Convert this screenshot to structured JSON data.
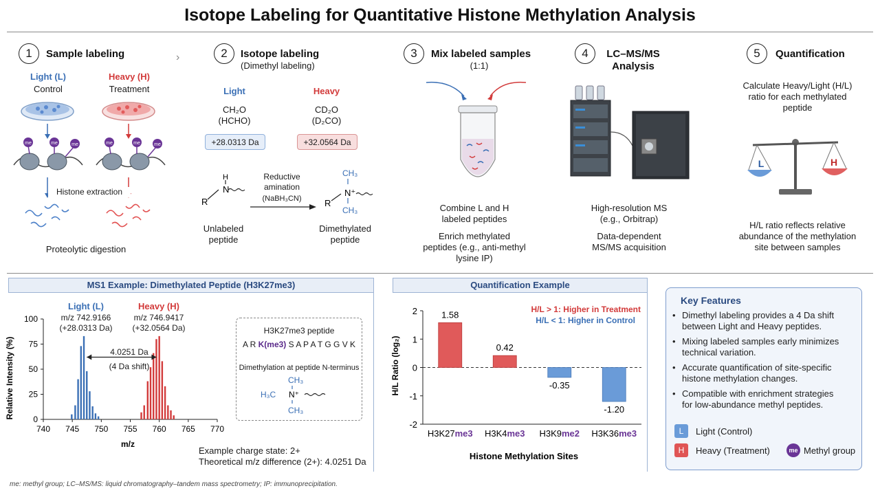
{
  "title": "Isotope Labeling for Quantitative Histone Methylation Analysis",
  "steps": [
    {
      "num": "1",
      "title": "Sample labeling"
    },
    {
      "num": "2",
      "title": "Isotope labeling",
      "subtitle": "(Dimethyl labeling)"
    },
    {
      "num": "3",
      "title": "Mix labeled samples",
      "subtitle": "(1:1)"
    },
    {
      "num": "4",
      "title": "LC–MS/MS",
      "subtitle": "Analysis"
    },
    {
      "num": "5",
      "title": "Quantification"
    }
  ],
  "step1": {
    "light_label": "Light (L)",
    "light_sub": "Control",
    "heavy_label": "Heavy (H)",
    "heavy_sub": "Treatment",
    "me": "me",
    "histone_extraction": "Histone extraction",
    "digestion": "Proteolytic digestion"
  },
  "step2": {
    "light": "Light",
    "light_formula": "CH₂O",
    "light_formula2": "(HCHO)",
    "light_mass": "+28.0313 Da",
    "heavy": "Heavy",
    "heavy_formula": "CD₂O",
    "heavy_formula2": "(D₂CO)",
    "heavy_mass": "+32.0564 Da",
    "reaction": "Reductive",
    "reaction2": "amination",
    "reagent": "(NaBH₃CN)",
    "unlabeled": "Unlabeled",
    "unlabeled2": "peptide",
    "dimethylated": "Dimethylated",
    "dimethylated2": "peptide",
    "atom_h": "H",
    "atom_n": "N",
    "atom_r": "R",
    "atom_n_plus": "N⁺",
    "ch3": "CH₃"
  },
  "step3": {
    "line1": "Combine L and H",
    "line2": "labeled peptides",
    "line3": "Enrich methylated",
    "line4": "peptides (e.g., anti-methyl",
    "line5": "lysine IP)"
  },
  "step4": {
    "line1": "High-resolution MS",
    "line2": "(e.g., Orbitrap)",
    "line3": "Data-dependent",
    "line4": "MS/MS acquisition"
  },
  "step5": {
    "line1": "Calculate Heavy/Light (H/L)",
    "line2": "ratio for each methylated",
    "line3": "peptide",
    "scale_l": "L",
    "scale_h": "H",
    "line4": "H/L ratio reflects relative",
    "line5": "abundance of the methylation",
    "line6": "site between samples"
  },
  "ms1": {
    "panel_title": "MS1 Example: Dimethylated Peptide (H3K27me3)",
    "light_label": "Light (L)",
    "light_mz": "m/z 742.9166",
    "light_mass": "(+28.0313 Da)",
    "heavy_label": "Heavy (H)",
    "heavy_mz": "m/z 746.9417",
    "heavy_mass": "(+32.0564 Da)",
    "shift": "4.0251 Da",
    "shift2": "(4 Da shift)",
    "ylabel": "Relative Intensity (%)",
    "xlabel": "m/z",
    "peptide_title": "H3K27me3 peptide",
    "seq_pre": "A R ",
    "seq_mod": "K(me3)",
    "seq_post": " S A P A T G G V K",
    "nterm": "Dimethylation at peptide N-terminus",
    "h3c": "H₃C",
    "n_plus": "N⁺",
    "ch3": "CH₃",
    "charge": "Example charge state: 2+",
    "theory": "Theoretical m/z difference (2+): 4.0251 Da"
  },
  "quant": {
    "panel_title": "Quantification Example",
    "legend_red": "H/L > 1: Higher in Treatment",
    "legend_blue": "H/L < 1: Higher in Control",
    "ylabel": "H/L Ratio (log₂)",
    "xlabel": "Histone Methylation Sites"
  },
  "key_features": {
    "title": "Key Features",
    "items": [
      [
        "Dimethyl labeling provides a 4 Da shift",
        "between Light and Heavy peptides."
      ],
      [
        "Mixing labeled samples early minimizes",
        "technical variation."
      ],
      [
        "Accurate quantification of site-specific",
        "histone methylation changes."
      ],
      [
        "Compatible with enrichment strategies",
        "for low-abundance methyl peptides."
      ]
    ],
    "legend_l_icon": "L",
    "legend_l": "Light (Control)",
    "legend_h_icon": "H",
    "legend_h": "Heavy (Treatment)",
    "legend_me_icon": "me",
    "legend_me": "Methyl group"
  },
  "footnote": "me: methyl group; LC–MS/MS: liquid chromatography–tandem mass spectrometry; IP: immunoprecipitation.",
  "colors": {
    "light": "#3a6fb5",
    "heavy": "#d23a3a",
    "methyl": "#6a3596"
  },
  "chart_data": [
    {
      "type": "bar",
      "title": "MS1 Example: Dimethylated Peptide (H3K27me3)",
      "xlabel": "m/z",
      "ylabel": "Relative Intensity (%)",
      "xlim": [
        740,
        770
      ],
      "ylim": [
        0,
        100
      ],
      "xticks": [
        740,
        745,
        750,
        755,
        760,
        765,
        770
      ],
      "yticks": [
        0,
        25,
        50,
        75,
        100
      ],
      "series": [
        {
          "name": "Light (L)",
          "x": [
            744.9,
            745.5,
            746.0,
            746.5,
            747.0,
            747.5,
            748.0,
            748.5,
            749.0,
            749.5
          ],
          "values": [
            5,
            14,
            40,
            73,
            83,
            48,
            28,
            13,
            6,
            3
          ]
        },
        {
          "name": "Heavy (H)",
          "x": [
            756.9,
            757.4,
            758.0,
            758.5,
            759.0,
            759.5,
            760.0,
            760.5,
            761.0,
            761.5,
            762.0,
            762.5
          ],
          "values": [
            7,
            14,
            38,
            52,
            66,
            80,
            83,
            58,
            33,
            14,
            9,
            4
          ]
        }
      ]
    },
    {
      "type": "bar",
      "title": "Quantification Example",
      "xlabel": "Histone Methylation Sites",
      "ylabel": "H/L Ratio (log₂)",
      "ylim": [
        -2,
        2
      ],
      "yticks": [
        -2,
        -1,
        0,
        1,
        2
      ],
      "categories": [
        {
          "base": "H3K27",
          "mod": "me3"
        },
        {
          "base": "H3K4",
          "mod": "me3"
        },
        {
          "base": "H3K9",
          "mod": "me2"
        },
        {
          "base": "H3K36",
          "mod": "me3"
        }
      ],
      "values": [
        1.58,
        0.42,
        -0.35,
        -1.2
      ],
      "labels": [
        "1.58",
        "0.42",
        "-0.35",
        "-1.20"
      ]
    }
  ]
}
